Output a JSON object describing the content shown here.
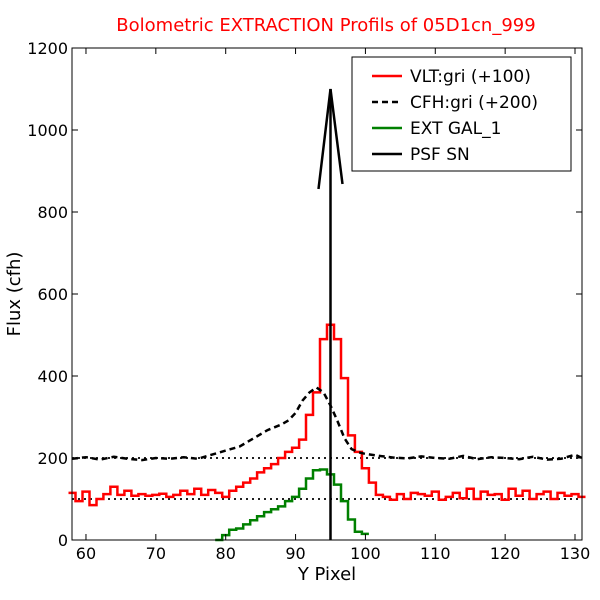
{
  "colors": {
    "title": "#ff0000",
    "vlt": "#ff0000",
    "cfh": "#000000",
    "ext": "#008000",
    "psf": "#000000",
    "reference": "#000000"
  },
  "chart_data": {
    "type": "line",
    "title": "Bolometric EXTRACTION Profils of 05D1cn_999",
    "xlabel": "Y Pixel",
    "ylabel": "Flux (cfh)",
    "xlim": [
      58,
      131
    ],
    "ylim": [
      0,
      1200
    ],
    "xticks": [
      60,
      70,
      80,
      90,
      100,
      110,
      120,
      130
    ],
    "yticks": [
      0,
      200,
      400,
      600,
      800,
      1000,
      1200
    ],
    "grid": false,
    "legend_position": "top-right",
    "reference_lines": [
      {
        "y": 100,
        "style": "dotted"
      },
      {
        "y": 200,
        "style": "dotted"
      }
    ],
    "series": [
      {
        "name": "VLT:gri (+100)",
        "color": "#ff0000",
        "style": "steps",
        "x": [
          58,
          59,
          60,
          61,
          62,
          63,
          64,
          65,
          66,
          67,
          68,
          69,
          70,
          71,
          72,
          73,
          74,
          75,
          76,
          77,
          78,
          79,
          80,
          81,
          82,
          83,
          84,
          85,
          86,
          87,
          88,
          89,
          90,
          91,
          92,
          93,
          94,
          95,
          96,
          97,
          98,
          99,
          100,
          101,
          102,
          103,
          104,
          105,
          106,
          107,
          108,
          109,
          110,
          111,
          112,
          113,
          114,
          115,
          116,
          117,
          118,
          119,
          120,
          121,
          122,
          123,
          124,
          125,
          126,
          127,
          128,
          129,
          130,
          131
        ],
        "y": [
          115,
          95,
          118,
          85,
          100,
          112,
          130,
          110,
          120,
          108,
          112,
          108,
          110,
          113,
          105,
          110,
          120,
          112,
          125,
          110,
          122,
          115,
          105,
          120,
          130,
          140,
          150,
          165,
          175,
          185,
          200,
          215,
          225,
          245,
          305,
          360,
          490,
          525,
          490,
          395,
          255,
          215,
          175,
          140,
          110,
          105,
          98,
          112,
          100,
          115,
          112,
          108,
          118,
          98,
          105,
          115,
          102,
          125,
          100,
          118,
          110,
          112,
          98,
          125,
          108,
          120,
          100,
          112,
          118,
          100,
          115,
          108,
          112,
          105
        ]
      },
      {
        "name": "CFH:gri (+200)",
        "color": "#000000",
        "style": "dashed",
        "x": [
          58,
          60,
          62,
          64,
          66,
          68,
          70,
          72,
          74,
          76,
          78,
          80,
          82,
          84,
          86,
          88,
          89,
          90,
          91,
          92,
          93,
          94,
          95,
          96,
          97,
          98,
          99,
          100,
          102,
          104,
          106,
          108,
          110,
          112,
          114,
          116,
          118,
          120,
          122,
          124,
          126,
          128,
          130,
          131
        ],
        "y": [
          198,
          202,
          196,
          203,
          198,
          195,
          200,
          198,
          202,
          198,
          208,
          218,
          228,
          248,
          268,
          282,
          292,
          310,
          340,
          360,
          372,
          360,
          328,
          290,
          248,
          222,
          214,
          210,
          205,
          201,
          199,
          204,
          200,
          198,
          205,
          197,
          202,
          200,
          197,
          203,
          196,
          198,
          208,
          200
        ]
      },
      {
        "name": "EXT GAL_1",
        "color": "#008000",
        "style": "steps",
        "x": [
          79,
          80,
          81,
          82,
          83,
          84,
          85,
          86,
          87,
          88,
          89,
          90,
          91,
          92,
          93,
          94,
          95,
          96,
          97,
          98,
          99,
          100
        ],
        "y": [
          0,
          12,
          25,
          28,
          38,
          48,
          58,
          68,
          75,
          82,
          95,
          105,
          125,
          150,
          170,
          172,
          160,
          135,
          95,
          50,
          20,
          15
        ]
      },
      {
        "name": "PSF SN",
        "color": "#000000",
        "style": "solid",
        "x": [
          95,
          95
        ],
        "y": [
          0,
          1100
        ]
      }
    ]
  }
}
